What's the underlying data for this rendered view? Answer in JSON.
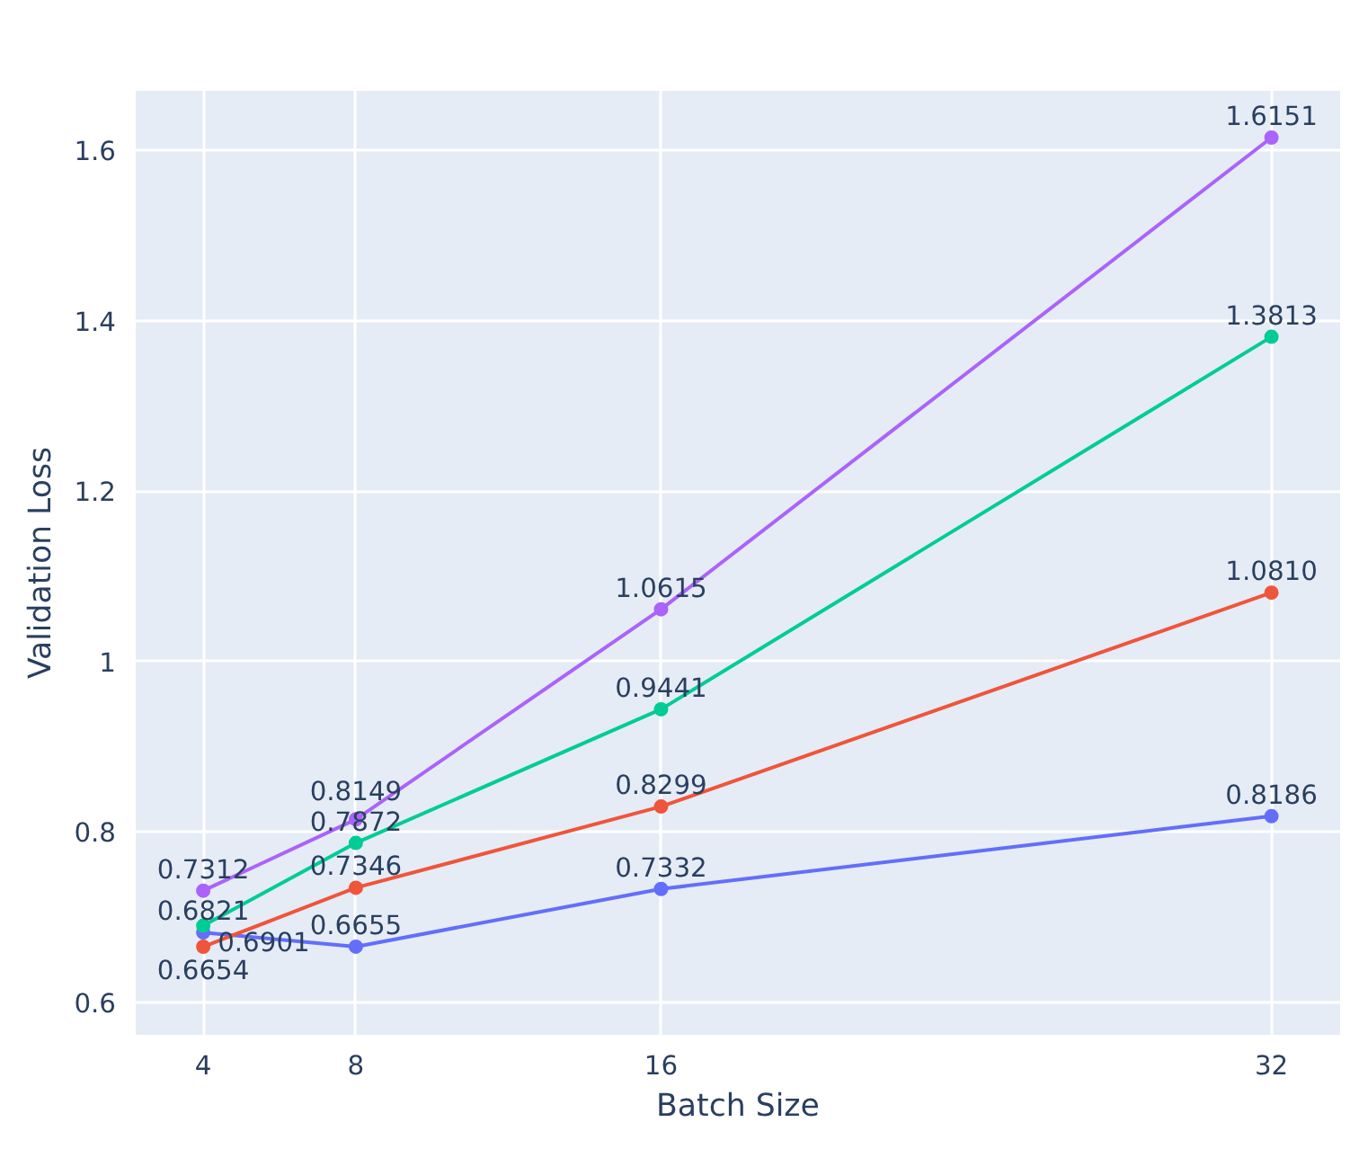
{
  "chart_data": {
    "type": "line",
    "xlabel": "Batch Size",
    "ylabel": "Validation Loss",
    "x": [
      4,
      8,
      16,
      32
    ],
    "xlim": [
      2.23,
      33.8
    ],
    "xticks": [
      4,
      8,
      16,
      32
    ],
    "ylim": [
      0.562,
      1.67
    ],
    "yticks": [
      {
        "value": 0.6,
        "label": "0.6"
      },
      {
        "value": 0.8,
        "label": "0.8"
      },
      {
        "value": 1,
        "label": "1"
      },
      {
        "value": 1.2,
        "label": "1.2"
      },
      {
        "value": 1.4,
        "label": "1.4"
      },
      {
        "value": 1.6,
        "label": "1.6"
      }
    ],
    "grid": true,
    "marker": "circle",
    "line_style": "solid",
    "series": [
      {
        "color": "#636efa",
        "values": [
          0.6821,
          0.6655,
          0.7332,
          0.8186
        ],
        "value_labels": [
          "0.6821",
          "0.6655",
          "0.7332",
          "0.8186"
        ]
      },
      {
        "color": "#ef553b",
        "values": [
          0.6654,
          0.7346,
          0.8299,
          1.081
        ],
        "value_labels": [
          "0.6654",
          "0.7346",
          "0.8299",
          "1.0810"
        ]
      },
      {
        "color": "#00cc96",
        "values": [
          0.6901,
          0.7872,
          0.9441,
          1.3813
        ],
        "value_labels": [
          "0.6901",
          "0.7872",
          "0.9441",
          "1.3813"
        ]
      },
      {
        "color": "#ab63fa",
        "values": [
          0.7312,
          0.8149,
          1.0615,
          1.6151
        ],
        "value_labels": [
          "0.7312",
          "0.8149",
          "1.0615",
          "1.6151"
        ]
      }
    ]
  }
}
